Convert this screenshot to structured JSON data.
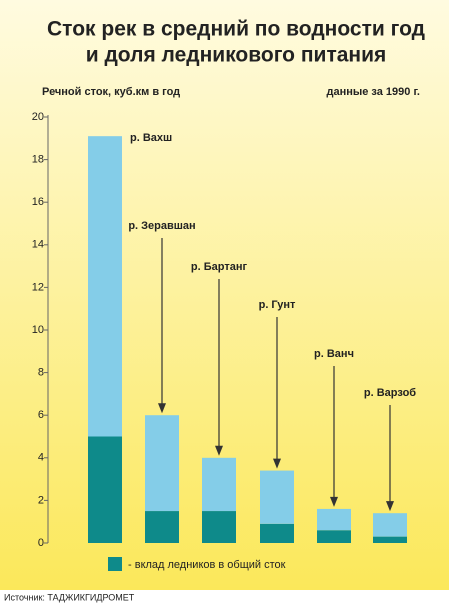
{
  "chart_data": {
    "type": "stacked_bar",
    "title": [
      "Сток рек в средний по водности год",
      "и доля ледникового питания"
    ],
    "y_label": "Речной сток, куб.км в год",
    "annotation": "данные за 1990 г.",
    "source": "Источник: ТАДЖИКГИДРОМЕТ",
    "categories": [
      "р. Вахш",
      "р. Зеравшан",
      "р. Бартанг",
      "р. Гунт",
      "р. Ванч",
      "р. Варзоб"
    ],
    "series": [
      {
        "name": "- вклад ледников в общий сток",
        "color": "#0e8a8a",
        "values": [
          5,
          1.5,
          1.5,
          0.9,
          0.6,
          0.3
        ]
      },
      {
        "color": "#84cde8",
        "values": [
          14.1,
          4.5,
          2.5,
          2.5,
          1.0,
          1.1
        ]
      }
    ],
    "ylim": [
      0,
      20
    ],
    "yticks": [
      0,
      2,
      4,
      6,
      8,
      10,
      12,
      14,
      16,
      18,
      20
    ]
  }
}
